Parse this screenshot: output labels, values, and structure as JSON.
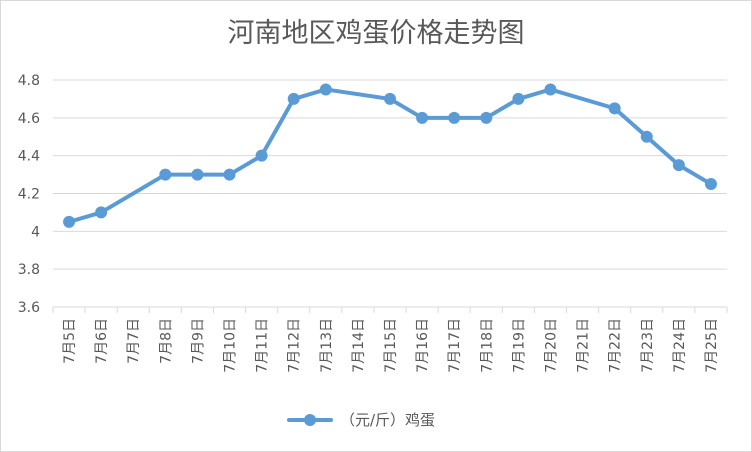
{
  "chart_data": {
    "type": "line",
    "title": "河南地区鸡蛋价格走势图",
    "xlabel": "",
    "ylabel": "",
    "categories": [
      "7月5日",
      "7月6日",
      "7月7日",
      "7月8日",
      "7月9日",
      "7月10日",
      "7月11日",
      "7月12日",
      "7月13日",
      "7月14日",
      "7月15日",
      "7月16日",
      "7月17日",
      "7月18日",
      "7月19日",
      "7月20日",
      "7月21日",
      "7月22日",
      "7月23日",
      "7月24日",
      "7月25日"
    ],
    "series": [
      {
        "name": "（元/斤）鸡蛋",
        "values": [
          4.05,
          4.1,
          null,
          4.3,
          4.3,
          4.3,
          4.4,
          4.7,
          4.75,
          null,
          4.7,
          4.6,
          4.6,
          4.6,
          4.7,
          4.75,
          null,
          4.65,
          4.5,
          4.35,
          4.25
        ]
      }
    ],
    "ylim": [
      3.6,
      4.8
    ],
    "yticks": [
      "3.6",
      "3.8",
      "4",
      "4.2",
      "4.4",
      "4.6",
      "4.8"
    ],
    "grid": true,
    "legend_position": "bottom",
    "line_color": "#5b9bd5"
  }
}
